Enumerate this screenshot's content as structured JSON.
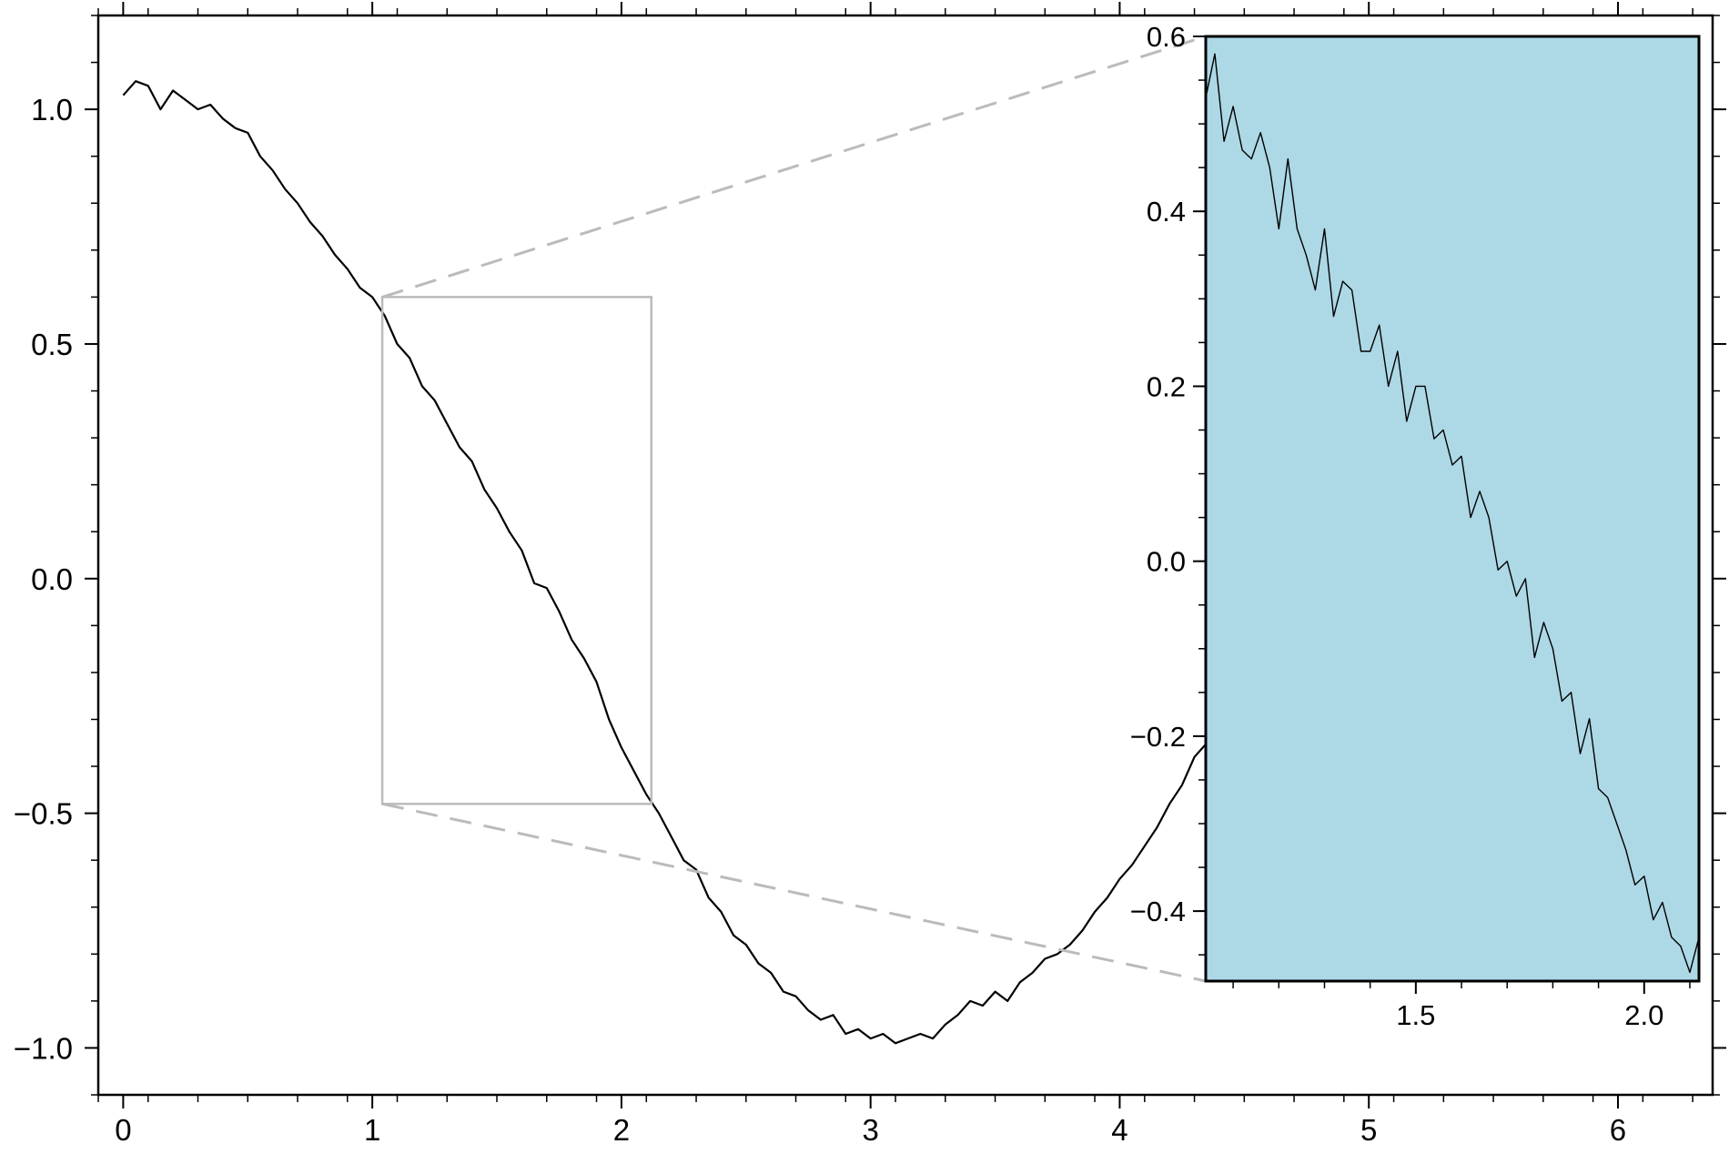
{
  "chart_data": {
    "type": "line",
    "title": "",
    "xlabel": "",
    "ylabel": "",
    "grid": false,
    "legend": "none",
    "xlim": [
      -0.1,
      6.38
    ],
    "ylim": [
      -1.1,
      1.2
    ],
    "xticks": [
      0,
      1,
      2,
      3,
      4,
      5,
      6
    ],
    "xtick_labels": [
      "0",
      "1",
      "2",
      "3",
      "4",
      "5",
      "6"
    ],
    "yticks": [
      -1.0,
      -0.5,
      0.0,
      0.5,
      1.0
    ],
    "ytick_labels": [
      "−1.0",
      "−0.5",
      "0.0",
      "0.5",
      "1.0"
    ],
    "series": [
      {
        "values_x": [
          0.0,
          0.05,
          0.1,
          0.15,
          0.2,
          0.25,
          0.3,
          0.35,
          0.4,
          0.45,
          0.5,
          0.55,
          0.6,
          0.65,
          0.7,
          0.75,
          0.8,
          0.85,
          0.9,
          0.95,
          1.0,
          1.05,
          1.1,
          1.15,
          1.2,
          1.25,
          1.3,
          1.35,
          1.4,
          1.45,
          1.5,
          1.55,
          1.6,
          1.65,
          1.7,
          1.75,
          1.8,
          1.85,
          1.9,
          1.95,
          2.0,
          2.05,
          2.1,
          2.15,
          2.2,
          2.25,
          2.3,
          2.35,
          2.4,
          2.45,
          2.5,
          2.55,
          2.6,
          2.65,
          2.7,
          2.75,
          2.8,
          2.85,
          2.9,
          2.95,
          3.0,
          3.05,
          3.1,
          3.15,
          3.2,
          3.25,
          3.3,
          3.35,
          3.4,
          3.45,
          3.5,
          3.55,
          3.6,
          3.65,
          3.7,
          3.75,
          3.8,
          3.85,
          3.9,
          3.95,
          4.0,
          4.05,
          4.1,
          4.15,
          4.2,
          4.25,
          4.3,
          4.35,
          4.4,
          4.45,
          4.5,
          4.55,
          4.6,
          4.65,
          4.7,
          4.75,
          4.8,
          4.85,
          4.9,
          4.95,
          5.0,
          5.05,
          5.1,
          5.15,
          5.2,
          5.25,
          5.3,
          5.35,
          5.4,
          5.45,
          5.5,
          5.55,
          5.6,
          5.65,
          5.7,
          5.75,
          5.8,
          5.85,
          5.9,
          5.95,
          6.0,
          6.05,
          6.1,
          6.15,
          6.2,
          6.25,
          6.28
        ],
        "values_y": [
          1.03,
          1.06,
          1.05,
          1.0,
          1.04,
          1.02,
          1.0,
          1.01,
          0.98,
          0.96,
          0.95,
          0.9,
          0.87,
          0.83,
          0.8,
          0.76,
          0.73,
          0.69,
          0.66,
          0.62,
          0.6,
          0.56,
          0.5,
          0.47,
          0.41,
          0.38,
          0.33,
          0.28,
          0.25,
          0.19,
          0.15,
          0.1,
          0.06,
          -0.01,
          -0.02,
          -0.07,
          -0.13,
          -0.17,
          -0.22,
          -0.3,
          -0.36,
          -0.41,
          -0.46,
          -0.5,
          -0.55,
          -0.6,
          -0.62,
          -0.68,
          -0.71,
          -0.76,
          -0.78,
          -0.82,
          -0.84,
          -0.88,
          -0.89,
          -0.92,
          -0.94,
          -0.93,
          -0.97,
          -0.96,
          -0.98,
          -0.97,
          -0.99,
          -0.98,
          -0.97,
          -0.98,
          -0.95,
          -0.93,
          -0.9,
          -0.91,
          -0.88,
          -0.9,
          -0.86,
          -0.84,
          -0.81,
          -0.8,
          -0.78,
          -0.75,
          -0.71,
          -0.68,
          -0.64,
          -0.61,
          -0.57,
          -0.53,
          -0.48,
          -0.44,
          -0.38,
          -0.35,
          -0.3,
          -0.25,
          -0.2,
          -0.17,
          -0.11,
          -0.06,
          -0.02,
          0.02,
          0.08,
          0.13,
          0.18,
          0.22,
          0.28,
          0.33,
          0.37,
          0.42,
          0.46,
          0.5,
          0.54,
          0.59,
          0.63,
          0.66,
          0.7,
          0.74,
          0.78,
          0.81,
          0.84,
          0.87,
          0.9,
          0.92,
          0.95,
          0.96,
          0.98,
          1.0,
          1.01,
          1.02,
          1.02,
          1.03,
          1.04
        ]
      }
    ],
    "zoom_region": {
      "xlim": [
        1.04,
        2.12
      ],
      "ylim": [
        -0.48,
        0.6
      ]
    },
    "inset": {
      "background": "#add8e6",
      "connector_color": "#bbbbbb",
      "xlim": [
        1.04,
        2.12
      ],
      "ylim": [
        -0.48,
        0.6
      ],
      "xticks": [
        1.5,
        2.0
      ],
      "xtick_labels": [
        "1.5",
        "2.0"
      ],
      "yticks": [
        -0.4,
        -0.2,
        0.0,
        0.2,
        0.4,
        0.6
      ],
      "ytick_labels": [
        "−0.4",
        "−0.2",
        "0.0",
        "0.2",
        "0.4",
        "0.6"
      ],
      "values_x": [
        1.04,
        1.06,
        1.08,
        1.1,
        1.12,
        1.14,
        1.16,
        1.18,
        1.2,
        1.22,
        1.24,
        1.26,
        1.28,
        1.3,
        1.32,
        1.34,
        1.36,
        1.38,
        1.4,
        1.42,
        1.44,
        1.46,
        1.48,
        1.5,
        1.52,
        1.54,
        1.56,
        1.58,
        1.6,
        1.62,
        1.64,
        1.66,
        1.68,
        1.7,
        1.72,
        1.74,
        1.76,
        1.78,
        1.8,
        1.82,
        1.84,
        1.86,
        1.88,
        1.9,
        1.92,
        1.94,
        1.96,
        1.98,
        2.0,
        2.02,
        2.04,
        2.06,
        2.08,
        2.1,
        2.12
      ],
      "values_y": [
        0.53,
        0.58,
        0.48,
        0.52,
        0.47,
        0.46,
        0.49,
        0.45,
        0.38,
        0.46,
        0.38,
        0.35,
        0.31,
        0.38,
        0.28,
        0.32,
        0.31,
        0.24,
        0.24,
        0.27,
        0.2,
        0.24,
        0.16,
        0.2,
        0.2,
        0.14,
        0.15,
        0.11,
        0.12,
        0.05,
        0.08,
        0.05,
        -0.01,
        0.0,
        -0.04,
        -0.02,
        -0.11,
        -0.07,
        -0.1,
        -0.16,
        -0.15,
        -0.22,
        -0.18,
        -0.26,
        -0.27,
        -0.3,
        -0.33,
        -0.37,
        -0.36,
        -0.41,
        -0.39,
        -0.43,
        -0.44,
        -0.47,
        -0.43
      ]
    }
  }
}
